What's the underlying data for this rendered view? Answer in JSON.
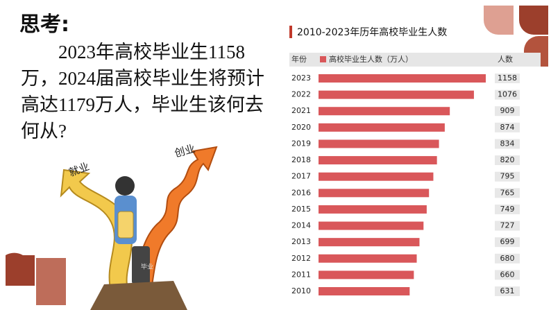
{
  "heading": "思考:",
  "paragraph": "2023年高校毕业生1158万，2024届高校毕业生将预计高达1179万人，毕业生该何去何从?",
  "illustration": {
    "labels": [
      "就业",
      "创业",
      "毕业"
    ]
  },
  "chart_data": {
    "type": "bar",
    "orientation": "horizontal",
    "title": "2010-2023年历年高校毕业生人数",
    "category_header": "年份",
    "value_header": "人数",
    "categories": [
      "2023",
      "2022",
      "2021",
      "2020",
      "2019",
      "2018",
      "2017",
      "2016",
      "2015",
      "2014",
      "2013",
      "2012",
      "2011",
      "2010"
    ],
    "series": [
      {
        "name": "高校毕业生人数（万人）",
        "color": "#d9575a",
        "values": [
          1158,
          1076,
          909,
          874,
          834,
          820,
          795,
          765,
          749,
          727,
          699,
          680,
          660,
          631
        ]
      }
    ]
  }
}
